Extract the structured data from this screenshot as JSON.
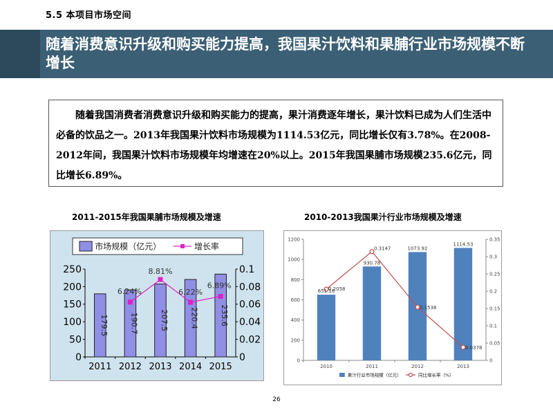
{
  "section_label": "5.5 本项目市场空间",
  "title": "随着消费意识升级和购买能力提高，我国果汁饮料和果脯行业市场规模不断增长",
  "summary": "随着我国消费者消费意识升级和购买能力的提高，果汁消费逐年增长，果汁饮料已成为人们生活中必备的饮品之一。2013年我国果汁饮料市场规模为1114.53亿元，同比增长仅有3.78%。在2008-2012年间，我国果汁饮料市场规模年均增速在20%以上。2015年我国果脯市场规模235.6亿元，同比增长6.89%。",
  "page_number": "26",
  "colors": {
    "title_bar": "#3b5f74",
    "chart1_bar": "#8f8fe6",
    "chart1_line": "#e020c8",
    "chart1_bg": "#cfe3ee",
    "chart2_bar": "#4f81bd",
    "chart2_line": "#c0504d"
  },
  "chart_data": [
    {
      "type": "bar",
      "title": "2011-2015年我国果脯市场规模及增速",
      "categories": [
        "2011",
        "2012",
        "2013",
        "2014",
        "2015"
      ],
      "series": [
        {
          "name": "市场规模（亿元）",
          "type": "bar",
          "axis": "left",
          "values": [
            179.5,
            190.7,
            207.5,
            220.4,
            235.6
          ],
          "labels": [
            "179.5",
            "190.7",
            "207.5",
            "220.4",
            "235.6"
          ]
        },
        {
          "name": "增长率",
          "type": "line",
          "axis": "right",
          "values": [
            null,
            0.0624,
            0.0881,
            0.0622,
            0.0689
          ],
          "labels": [
            "",
            "6.24%",
            "8.81%",
            "6.22%",
            "6.89%"
          ]
        }
      ],
      "ylim": [
        0,
        250
      ],
      "yticks": [
        "0",
        "50",
        "100",
        "150",
        "200",
        "250"
      ],
      "y2lim": [
        0,
        0.1
      ],
      "y2ticks": [
        "0",
        "0.02",
        "0.04",
        "0.06",
        "0.08",
        "0.1"
      ],
      "legend": "top",
      "grid": false
    },
    {
      "type": "bar",
      "title": "2010-2013我国果汁行业市场规模及增速",
      "categories": [
        "2010",
        "2011",
        "2012",
        "2013"
      ],
      "series": [
        {
          "name": "果汁行业市场规模（亿元）",
          "type": "bar",
          "axis": "left",
          "values": [
            651.16,
            930.78,
            1073.92,
            1114.53
          ],
          "labels": [
            "651.16",
            "930.78",
            "1073.92",
            "1114.53"
          ]
        },
        {
          "name": "同比增长率（%）",
          "type": "line",
          "axis": "right",
          "values": [
            0.2058,
            0.3147,
            0.1538,
            0.0378
          ],
          "labels": [
            "0.2058",
            "0.3147",
            "0.1538",
            "0.0378"
          ]
        }
      ],
      "ylim": [
        0,
        1200
      ],
      "yticks": [
        "0",
        "200",
        "400",
        "600",
        "800",
        "1000",
        "1200"
      ],
      "y2lim": [
        0,
        0.35
      ],
      "y2ticks": [
        "0",
        "0.05",
        "0.1",
        "0.15",
        "0.2",
        "0.25",
        "0.3",
        "0.35"
      ],
      "legend": "bottom",
      "grid": false
    }
  ]
}
